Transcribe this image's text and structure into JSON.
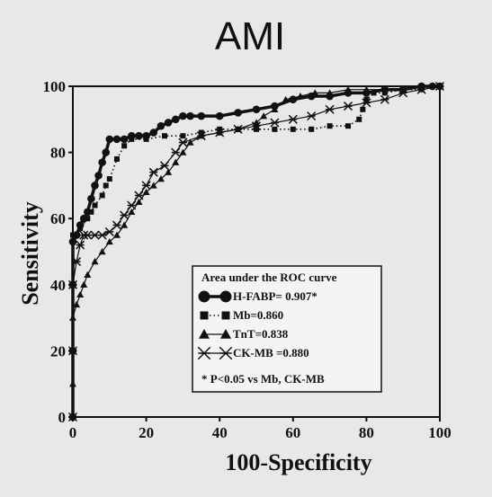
{
  "chart_data": {
    "type": "line",
    "title": "AMI",
    "xlabel": "100-Specificity",
    "ylabel": "Sensitivity",
    "xlim": [
      0,
      100
    ],
    "ylim": [
      0,
      100
    ],
    "x_ticks": [
      "0",
      "20",
      "40",
      "60",
      "80",
      "100"
    ],
    "y_ticks": [
      "0",
      "20",
      "40",
      "60",
      "80",
      "100"
    ],
    "grid": false,
    "legend": {
      "title": "Area under the ROC curve",
      "placement": "bottom-right",
      "note": "* P<0.05 vs Mb, CK-MB"
    },
    "series": [
      {
        "name": "H-FABP= 0.907*",
        "marker": "circle",
        "line": "solid-thick",
        "color": "#111111",
        "points": [
          [
            0,
            0
          ],
          [
            0,
            20
          ],
          [
            0,
            40
          ],
          [
            0,
            53
          ],
          [
            1,
            55
          ],
          [
            2,
            58
          ],
          [
            3,
            60
          ],
          [
            4,
            62
          ],
          [
            5,
            66
          ],
          [
            6,
            70
          ],
          [
            7,
            73
          ],
          [
            8,
            77
          ],
          [
            9,
            80
          ],
          [
            10,
            84
          ],
          [
            12,
            84
          ],
          [
            14,
            84
          ],
          [
            16,
            85
          ],
          [
            18,
            85
          ],
          [
            20,
            85
          ],
          [
            22,
            86
          ],
          [
            24,
            88
          ],
          [
            26,
            89
          ],
          [
            28,
            90
          ],
          [
            30,
            91
          ],
          [
            32,
            91
          ],
          [
            35,
            91
          ],
          [
            40,
            91
          ],
          [
            45,
            92
          ],
          [
            50,
            93
          ],
          [
            55,
            94
          ],
          [
            60,
            96
          ],
          [
            65,
            97
          ],
          [
            70,
            97
          ],
          [
            75,
            98
          ],
          [
            80,
            98
          ],
          [
            85,
            99
          ],
          [
            90,
            99
          ],
          [
            95,
            100
          ],
          [
            98,
            100
          ],
          [
            100,
            100
          ]
        ]
      },
      {
        "name": "Mb=0.860",
        "marker": "square",
        "line": "dotted",
        "color": "#111111",
        "points": [
          [
            0,
            0
          ],
          [
            0,
            20
          ],
          [
            0,
            40
          ],
          [
            0,
            55
          ],
          [
            2,
            57
          ],
          [
            4,
            60
          ],
          [
            5,
            62
          ],
          [
            6,
            64
          ],
          [
            8,
            67
          ],
          [
            9,
            70
          ],
          [
            10,
            72
          ],
          [
            12,
            78
          ],
          [
            14,
            82
          ],
          [
            16,
            84
          ],
          [
            20,
            84
          ],
          [
            25,
            85
          ],
          [
            30,
            85
          ],
          [
            35,
            86
          ],
          [
            40,
            87
          ],
          [
            45,
            87
          ],
          [
            50,
            87
          ],
          [
            55,
            87
          ],
          [
            60,
            87
          ],
          [
            65,
            87
          ],
          [
            70,
            88
          ],
          [
            75,
            88
          ],
          [
            78,
            90
          ],
          [
            79,
            93
          ],
          [
            80,
            96
          ],
          [
            82,
            98
          ],
          [
            85,
            98
          ],
          [
            90,
            99
          ],
          [
            95,
            99
          ],
          [
            100,
            100
          ]
        ]
      },
      {
        "name": "TnT=0.838",
        "marker": "triangle",
        "line": "solid-thin",
        "color": "#111111",
        "points": [
          [
            0,
            0
          ],
          [
            0,
            10
          ],
          [
            0,
            20
          ],
          [
            0,
            30
          ],
          [
            1,
            34
          ],
          [
            2,
            37
          ],
          [
            3,
            40
          ],
          [
            4,
            43
          ],
          [
            6,
            47
          ],
          [
            8,
            50
          ],
          [
            10,
            53
          ],
          [
            12,
            55
          ],
          [
            14,
            58
          ],
          [
            16,
            62
          ],
          [
            18,
            65
          ],
          [
            20,
            68
          ],
          [
            22,
            70
          ],
          [
            24,
            72
          ],
          [
            26,
            74
          ],
          [
            28,
            77
          ],
          [
            30,
            80
          ],
          [
            32,
            83
          ],
          [
            35,
            85
          ],
          [
            40,
            86
          ],
          [
            45,
            87
          ],
          [
            50,
            89
          ],
          [
            52,
            91
          ],
          [
            55,
            93
          ],
          [
            58,
            96
          ],
          [
            62,
            97
          ],
          [
            66,
            98
          ],
          [
            70,
            98
          ],
          [
            75,
            99
          ],
          [
            80,
            99
          ],
          [
            90,
            99
          ],
          [
            95,
            100
          ],
          [
            100,
            100
          ]
        ]
      },
      {
        "name": "CK-MB =0.880",
        "marker": "star",
        "line": "solid-thin",
        "color": "#111111",
        "points": [
          [
            0,
            0
          ],
          [
            0,
            20
          ],
          [
            0,
            40
          ],
          [
            1,
            47
          ],
          [
            2,
            52
          ],
          [
            3,
            55
          ],
          [
            4,
            55
          ],
          [
            6,
            55
          ],
          [
            8,
            55
          ],
          [
            10,
            56
          ],
          [
            12,
            58
          ],
          [
            14,
            61
          ],
          [
            16,
            64
          ],
          [
            18,
            67
          ],
          [
            20,
            70
          ],
          [
            22,
            74
          ],
          [
            25,
            76
          ],
          [
            28,
            80
          ],
          [
            30,
            83
          ],
          [
            35,
            85
          ],
          [
            40,
            86
          ],
          [
            45,
            87
          ],
          [
            50,
            88
          ],
          [
            55,
            89
          ],
          [
            60,
            90
          ],
          [
            65,
            91
          ],
          [
            70,
            93
          ],
          [
            75,
            94
          ],
          [
            80,
            95
          ],
          [
            85,
            96
          ],
          [
            90,
            98
          ],
          [
            95,
            99
          ],
          [
            100,
            100
          ]
        ]
      }
    ]
  }
}
